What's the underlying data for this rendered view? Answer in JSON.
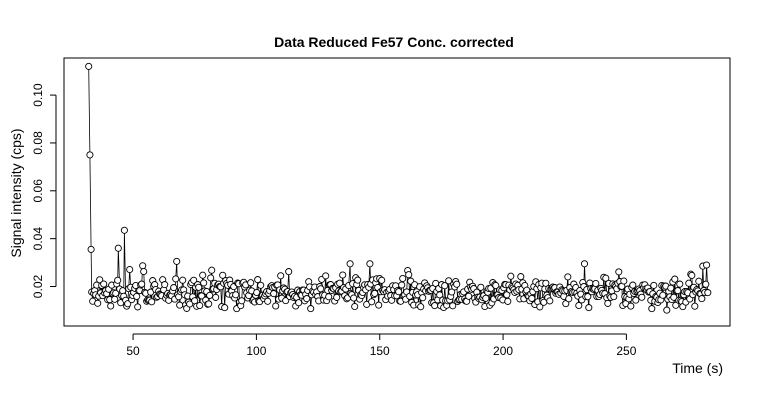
{
  "chart_data": {
    "type": "line",
    "title": "Data Reduced Fe57 Conc. corrected",
    "xlabel": "Time (s)",
    "ylabel": "Signal intensity (cps)",
    "xlim": [
      22,
      292
    ],
    "ylim": [
      0.0035,
      0.1155
    ],
    "xticks": [
      50,
      100,
      150,
      200,
      250
    ],
    "yticks": [
      0.02,
      0.04,
      0.06,
      0.08,
      0.1
    ],
    "ytick_labels": [
      "0.02",
      "0.04",
      "0.06",
      "0.08",
      "0.10"
    ],
    "grid": false,
    "marker": "open-circle",
    "series": [
      {
        "color": "#000000",
        "x_start": 32.0,
        "x_end": 283.0,
        "spikes": [
          {
            "x": 32.0,
            "y": 0.112
          },
          {
            "x": 32.5,
            "y": 0.075
          },
          {
            "x": 33.0,
            "y": 0.0355
          },
          {
            "x": 44.0,
            "y": 0.036
          },
          {
            "x": 46.5,
            "y": 0.0435
          },
          {
            "x": 138.0,
            "y": 0.0295
          },
          {
            "x": 146.0,
            "y": 0.0295
          },
          {
            "x": 233.0,
            "y": 0.0295
          },
          {
            "x": 282.5,
            "y": 0.029
          }
        ],
        "baseline": 0.0175,
        "spread": 0.0045,
        "n_points": 620
      }
    ]
  }
}
